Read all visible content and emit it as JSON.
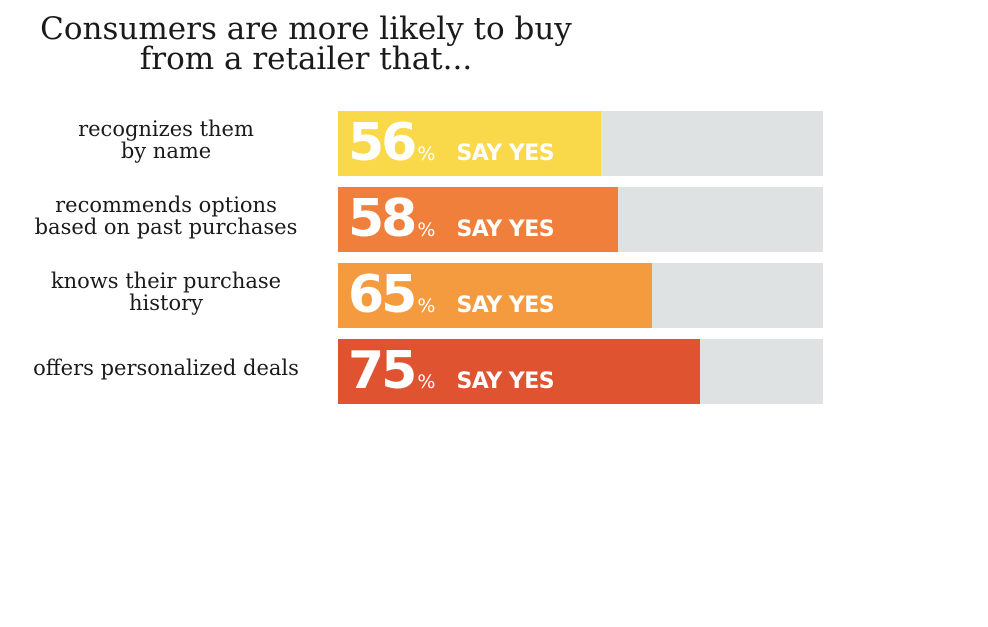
{
  "chart_data": {
    "type": "bar",
    "orientation": "horizontal",
    "title": [
      "Consumers are more likely to buy",
      "from a retailer that..."
    ],
    "xlim": [
      0,
      100
    ],
    "value_suffix": "%",
    "bar_text": "SAY YES",
    "categories": [
      {
        "lines": [
          "recognizes them",
          "by name"
        ],
        "value": 56,
        "color": "#f9d849"
      },
      {
        "lines": [
          "recommends options",
          "based on past purchases"
        ],
        "value": 58,
        "color": "#f07f3b"
      },
      {
        "lines": [
          "knows their purchase",
          "history"
        ],
        "value": 65,
        "color": "#f59b3f"
      },
      {
        "lines": [
          "offers personalized deals"
        ],
        "value": 75,
        "color": "#e05330"
      }
    ],
    "track_color": "#dfe2e3"
  }
}
